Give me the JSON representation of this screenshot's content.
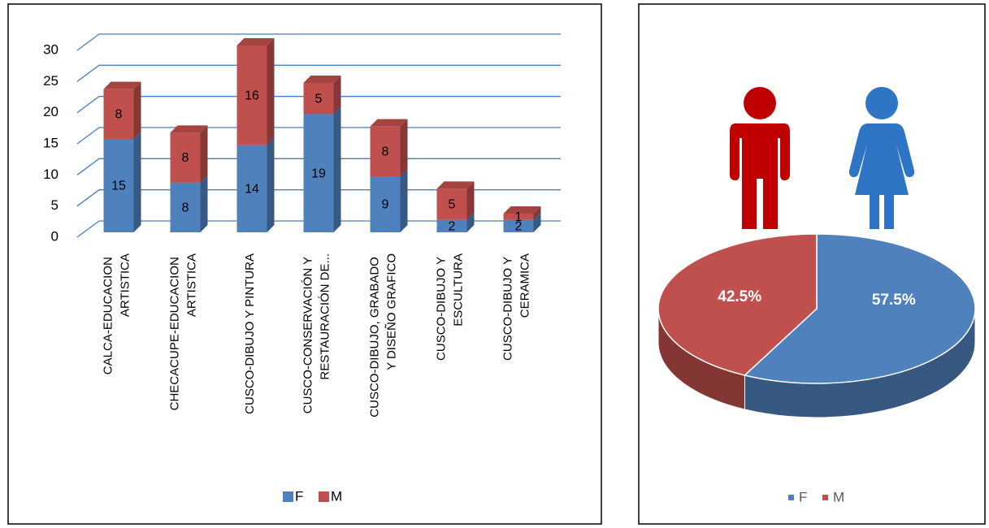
{
  "chart_data": [
    {
      "type": "bar",
      "stacked": true,
      "categories": [
        "CALCA-EDUCACION ARTISTICA",
        "CHECACUPE-EDUCACION ARTISTICA",
        "CUSCO-DIBUJO Y PINTURA",
        "CUSCO-CONSERVACIÓN Y RESTAURACIÓN DE...",
        "CUSCO-DIBUJO, GRABADO Y DISEÑO GRAFICO",
        "CUSCO-DIBUJO Y ESCULTURA",
        "CUSCO-DIBUJO Y CERAMICA"
      ],
      "series": [
        {
          "name": "F",
          "color": "#4f81bd",
          "values": [
            15,
            8,
            14,
            19,
            9,
            2,
            2
          ]
        },
        {
          "name": "M",
          "color": "#c0504d",
          "values": [
            8,
            8,
            16,
            5,
            8,
            5,
            1
          ]
        }
      ],
      "ylim": [
        0,
        30
      ],
      "yticks": [
        0,
        5,
        10,
        15,
        20,
        25,
        30
      ],
      "grid": true,
      "legend": "bottom"
    },
    {
      "type": "pie",
      "categories": [
        "F",
        "M"
      ],
      "values": [
        57.5,
        42.5
      ],
      "value_labels": [
        "57.5%",
        "42.5%"
      ],
      "colors": [
        "#4f81bd",
        "#c0504d"
      ],
      "legend": "bottom"
    }
  ]
}
